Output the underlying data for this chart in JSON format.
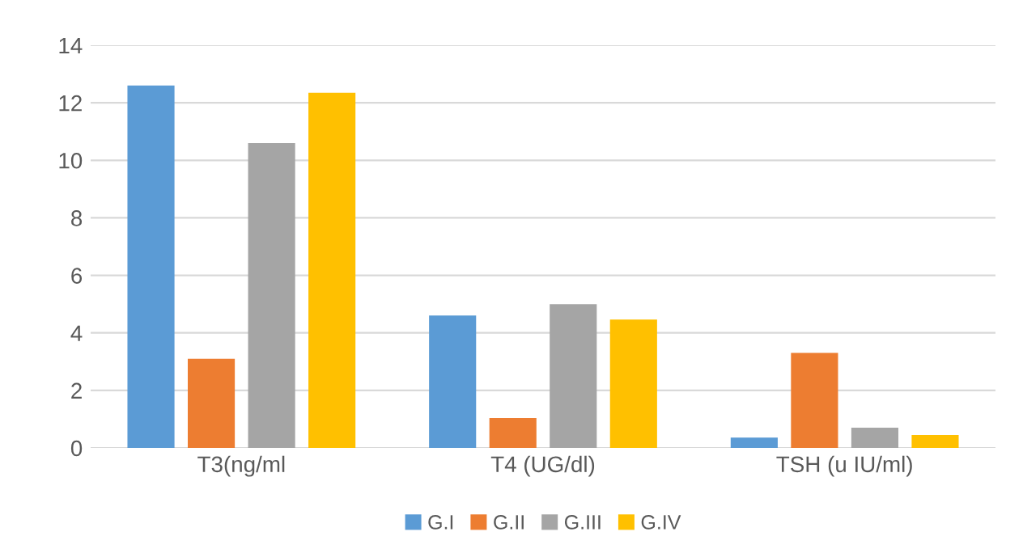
{
  "chart_data": {
    "type": "bar",
    "categories": [
      "T3(ng/ml",
      "T4 (UG/dl)",
      "TSH (u IU/ml)"
    ],
    "series": [
      {
        "name": "G.I",
        "color": "#5b9bd5",
        "values": [
          12.6,
          4.6,
          0.36
        ]
      },
      {
        "name": "G.II",
        "color": "#ed7d31",
        "values": [
          3.1,
          1.04,
          3.3
        ]
      },
      {
        "name": "G.III",
        "color": "#a5a5a5",
        "values": [
          10.6,
          5.0,
          0.7
        ]
      },
      {
        "name": "G.IV",
        "color": "#ffc000",
        "values": [
          12.35,
          4.46,
          0.45
        ]
      }
    ],
    "ylim": [
      0,
      14
    ],
    "yticks": [
      0,
      2,
      4,
      6,
      8,
      10,
      12,
      14
    ],
    "grid": "y",
    "legend": "bottom"
  }
}
